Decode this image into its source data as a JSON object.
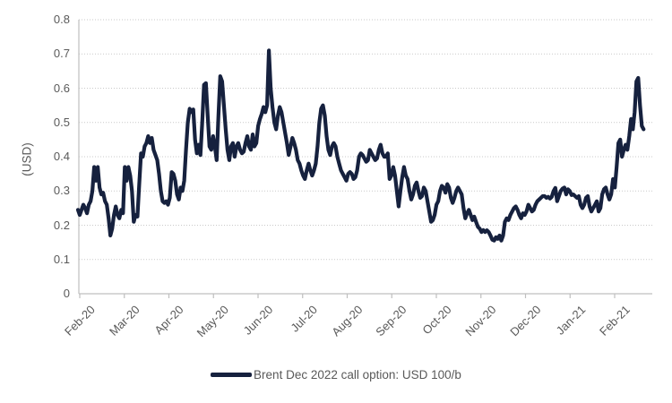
{
  "chart": {
    "ylabel": "(USD)",
    "legend": {
      "label": "Brent Dec 2022 call option: USD 100/b"
    },
    "colors": {
      "line": "#16213E",
      "grid": "#C9C9C9",
      "axis": "#BFBFBF",
      "text": "#595959"
    }
  },
  "chart_data": {
    "type": "line",
    "title": "",
    "xlabel": "",
    "ylabel": "(USD)",
    "ylim": [
      0,
      0.8
    ],
    "ytick_step": 0.1,
    "ytick_labels": [
      "0",
      "0.1",
      "0.2",
      "0.3",
      "0.4",
      "0.5",
      "0.6",
      "0.7",
      "0.8"
    ],
    "xtick_labels": [
      "Feb-20",
      "Mar-20",
      "Apr-20",
      "May-20",
      "Jun-20",
      "Jul-20",
      "Aug-20",
      "Sep-20",
      "Oct-20",
      "Nov-20",
      "Dec-20",
      "Jan-21",
      "Feb-21"
    ],
    "grid": "horizontal-dotted",
    "legend_position": "bottom",
    "x_span_months": [
      0,
      12.65
    ],
    "series": [
      {
        "name": "Brent Dec 2022 call option: USD 100/b",
        "color": "#16213E",
        "values": [
          0.245,
          0.23,
          0.245,
          0.26,
          0.25,
          0.235,
          0.26,
          0.27,
          0.3,
          0.37,
          0.33,
          0.37,
          0.31,
          0.29,
          0.295,
          0.27,
          0.26,
          0.22,
          0.17,
          0.19,
          0.23,
          0.255,
          0.23,
          0.22,
          0.245,
          0.235,
          0.37,
          0.33,
          0.37,
          0.345,
          0.3,
          0.21,
          0.23,
          0.225,
          0.32,
          0.41,
          0.4,
          0.43,
          0.44,
          0.46,
          0.44,
          0.455,
          0.42,
          0.405,
          0.39,
          0.35,
          0.3,
          0.27,
          0.265,
          0.27,
          0.26,
          0.28,
          0.355,
          0.35,
          0.33,
          0.29,
          0.275,
          0.31,
          0.3,
          0.33,
          0.42,
          0.5,
          0.54,
          0.53,
          0.538,
          0.45,
          0.41,
          0.435,
          0.405,
          0.5,
          0.61,
          0.615,
          0.52,
          0.43,
          0.42,
          0.46,
          0.43,
          0.39,
          0.52,
          0.635,
          0.62,
          0.55,
          0.48,
          0.42,
          0.39,
          0.43,
          0.44,
          0.4,
          0.43,
          0.44,
          0.42,
          0.41,
          0.415,
          0.44,
          0.46,
          0.43,
          0.42,
          0.465,
          0.43,
          0.44,
          0.49,
          0.51,
          0.525,
          0.545,
          0.53,
          0.55,
          0.71,
          0.6,
          0.545,
          0.5,
          0.48,
          0.52,
          0.545,
          0.53,
          0.5,
          0.47,
          0.44,
          0.405,
          0.43,
          0.455,
          0.44,
          0.42,
          0.39,
          0.38,
          0.36,
          0.345,
          0.335,
          0.36,
          0.38,
          0.36,
          0.345,
          0.36,
          0.38,
          0.43,
          0.5,
          0.54,
          0.55,
          0.52,
          0.46,
          0.42,
          0.405,
          0.43,
          0.44,
          0.43,
          0.4,
          0.38,
          0.36,
          0.35,
          0.34,
          0.33,
          0.35,
          0.355,
          0.35,
          0.335,
          0.34,
          0.36,
          0.4,
          0.41,
          0.405,
          0.395,
          0.385,
          0.39,
          0.42,
          0.41,
          0.4,
          0.39,
          0.395,
          0.42,
          0.435,
          0.41,
          0.4,
          0.4,
          0.41,
          0.335,
          0.345,
          0.37,
          0.345,
          0.3,
          0.255,
          0.3,
          0.34,
          0.37,
          0.345,
          0.335,
          0.3,
          0.275,
          0.29,
          0.315,
          0.325,
          0.3,
          0.28,
          0.285,
          0.31,
          0.3,
          0.27,
          0.24,
          0.21,
          0.215,
          0.23,
          0.26,
          0.27,
          0.3,
          0.315,
          0.31,
          0.295,
          0.32,
          0.31,
          0.28,
          0.265,
          0.28,
          0.3,
          0.31,
          0.3,
          0.29,
          0.25,
          0.22,
          0.235,
          0.245,
          0.23,
          0.215,
          0.225,
          0.21,
          0.195,
          0.19,
          0.18,
          0.186,
          0.18,
          0.185,
          0.18,
          0.17,
          0.158,
          0.155,
          0.165,
          0.16,
          0.17,
          0.155,
          0.17,
          0.21,
          0.22,
          0.215,
          0.23,
          0.24,
          0.25,
          0.255,
          0.245,
          0.23,
          0.22,
          0.235,
          0.23,
          0.24,
          0.26,
          0.25,
          0.24,
          0.245,
          0.26,
          0.27,
          0.275,
          0.28,
          0.285,
          0.285,
          0.28,
          0.283,
          0.278,
          0.283,
          0.3,
          0.309,
          0.27,
          0.285,
          0.3,
          0.307,
          0.31,
          0.29,
          0.305,
          0.3,
          0.288,
          0.29,
          0.285,
          0.28,
          0.285,
          0.26,
          0.25,
          0.26,
          0.28,
          0.285,
          0.255,
          0.24,
          0.25,
          0.26,
          0.27,
          0.24,
          0.25,
          0.29,
          0.305,
          0.31,
          0.29,
          0.275,
          0.29,
          0.335,
          0.31,
          0.37,
          0.44,
          0.45,
          0.4,
          0.42,
          0.435,
          0.42,
          0.46,
          0.51,
          0.48,
          0.53,
          0.62,
          0.63,
          0.55,
          0.49,
          0.48
        ]
      }
    ]
  }
}
